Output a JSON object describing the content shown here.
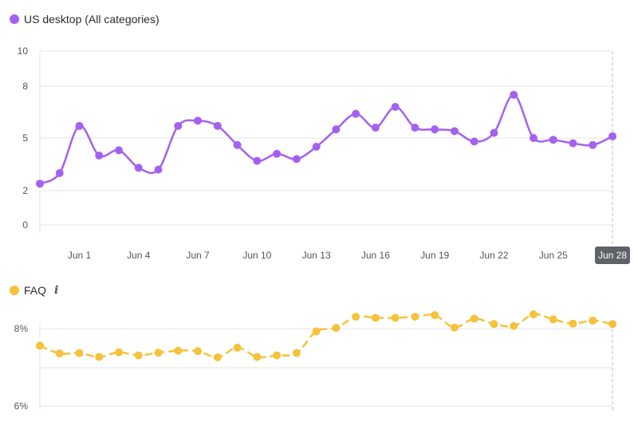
{
  "charts": {
    "main": {
      "legend_label": "US desktop (All categories)",
      "color": "#a461f0"
    },
    "faq": {
      "legend_label": "FAQ",
      "info_icon": "info-icon",
      "color": "#f6c23a"
    }
  },
  "chart_data": [
    {
      "type": "line",
      "series": [
        {
          "name": "US desktop (All categories)",
          "values": [
            2.4,
            3.0,
            5.7,
            4.0,
            4.3,
            3.3,
            3.2,
            5.7,
            6.0,
            5.7,
            4.6,
            3.7,
            4.1,
            3.8,
            4.5,
            5.5,
            6.4,
            5.6,
            6.8,
            5.6,
            5.5,
            5.4,
            4.8,
            5.3,
            7.5,
            5.0,
            4.9,
            4.7,
            4.6,
            5.1
          ]
        }
      ],
      "x": [
        "May 30",
        "May 31",
        "Jun 1",
        "Jun 2",
        "Jun 3",
        "Jun 4",
        "Jun 5",
        "Jun 6",
        "Jun 7",
        "Jun 8",
        "Jun 9",
        "Jun 10",
        "Jun 11",
        "Jun 12",
        "Jun 13",
        "Jun 14",
        "Jun 15",
        "Jun 16",
        "Jun 17",
        "Jun 18",
        "Jun 19",
        "Jun 20",
        "Jun 21",
        "Jun 22",
        "Jun 23",
        "Jun 24",
        "Jun 25",
        "Jun 26",
        "Jun 27",
        "Jun 28"
      ],
      "x_ticks": [
        "Jun 1",
        "Jun 4",
        "Jun 7",
        "Jun 10",
        "Jun 13",
        "Jun 16",
        "Jun 19",
        "Jun 22",
        "Jun 25",
        "Jun 28"
      ],
      "y_ticks": [
        "0",
        "2",
        "5",
        "8",
        "10"
      ],
      "ylim": [
        0,
        10
      ],
      "highlighted_x": "Jun 28",
      "grid": true
    },
    {
      "type": "line",
      "series": [
        {
          "name": "FAQ",
          "values": [
            7.56,
            7.36,
            7.37,
            7.27,
            7.39,
            7.31,
            7.38,
            7.43,
            7.42,
            7.26,
            7.51,
            7.27,
            7.31,
            7.37,
            7.93,
            8.02,
            8.31,
            8.28,
            8.28,
            8.31,
            8.35,
            8.03,
            8.26,
            8.12,
            8.07,
            8.37,
            8.24,
            8.13,
            8.21,
            8.12
          ]
        }
      ],
      "x": [
        "May 30",
        "May 31",
        "Jun 1",
        "Jun 2",
        "Jun 3",
        "Jun 4",
        "Jun 5",
        "Jun 6",
        "Jun 7",
        "Jun 8",
        "Jun 9",
        "Jun 10",
        "Jun 11",
        "Jun 12",
        "Jun 13",
        "Jun 14",
        "Jun 15",
        "Jun 16",
        "Jun 17",
        "Jun 18",
        "Jun 19",
        "Jun 20",
        "Jun 21",
        "Jun 22",
        "Jun 23",
        "Jun 24",
        "Jun 25",
        "Jun 26",
        "Jun 27",
        "Jun 28"
      ],
      "y_ticks": [
        "6%",
        "8%"
      ],
      "ylim": [
        6,
        10
      ],
      "grid": true
    }
  ]
}
